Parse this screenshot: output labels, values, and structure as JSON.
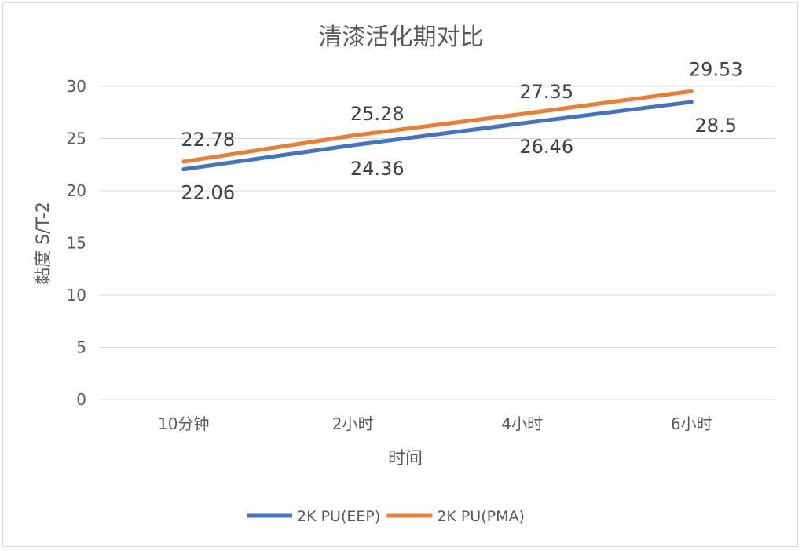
{
  "chart_data": {
    "type": "line",
    "title": "清漆活化期对比",
    "xlabel": "时间",
    "ylabel": "黏度 S/T-2",
    "categories": [
      "10分钟",
      "2小时",
      "4小时",
      "6小时"
    ],
    "ylim": [
      0,
      30
    ],
    "yticks": [
      0,
      5,
      10,
      15,
      20,
      25,
      30
    ],
    "grid": true,
    "legend_position": "bottom",
    "series": [
      {
        "name": "2K PU(EEP)",
        "color": "#4472c4",
        "values": [
          22.06,
          24.36,
          26.46,
          28.5
        ],
        "labels": [
          "22.06",
          "24.36",
          "26.46",
          "28.5"
        ],
        "label_side": "below"
      },
      {
        "name": "2K PU(PMA)",
        "color": "#ed7d31",
        "values": [
          22.78,
          25.28,
          27.35,
          29.53
        ],
        "labels": [
          "22.78",
          "25.28",
          "27.35",
          "29.53"
        ],
        "label_side": "above"
      }
    ]
  }
}
